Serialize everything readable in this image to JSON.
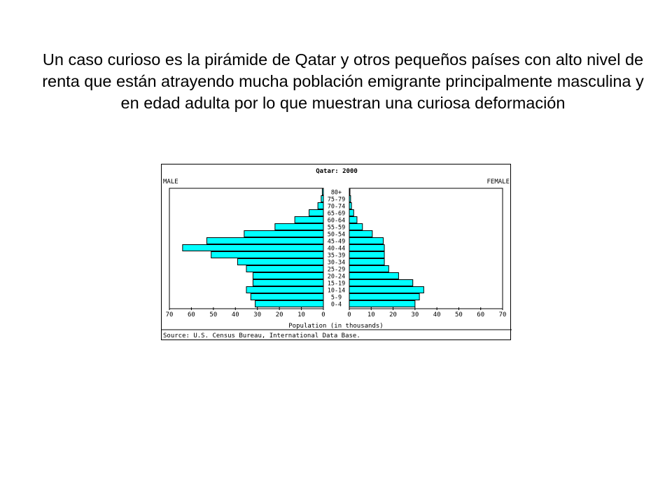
{
  "caption": "Un caso curioso es la pirámide de Qatar y otros pequeños países con alto nivel de renta que están atrayendo mucha población emigrante principalmente masculina y en edad adulta por lo que muestran una curiosa deformación",
  "chart_data": {
    "type": "bar",
    "subtype": "population-pyramid",
    "title": "Qatar: 2000",
    "left_label": "MALE",
    "right_label": "FEMALE",
    "xlabel": "Population (in thousands)",
    "source": "Source: U.S. Census Bureau, International Data Base.",
    "xlim": [
      0,
      70
    ],
    "x_ticks": [
      70,
      60,
      50,
      40,
      30,
      20,
      10,
      0
    ],
    "categories": [
      "80+",
      "75-79",
      "70-74",
      "65-69",
      "60-64",
      "55-59",
      "50-54",
      "45-49",
      "40-44",
      "35-39",
      "30-34",
      "25-29",
      "20-24",
      "15-19",
      "10-14",
      "5-9",
      "0-4"
    ],
    "series": [
      {
        "name": "MALE",
        "values": [
          0.5,
          1,
          2.5,
          6.5,
          13,
          22,
          36,
          53,
          64,
          51,
          39,
          35,
          32,
          32,
          35,
          33,
          31
        ],
        "color": "#00ffff"
      },
      {
        "name": "FEMALE",
        "values": [
          0.3,
          0.6,
          1,
          2,
          3.5,
          6,
          10.5,
          15.5,
          16,
          16,
          16,
          18,
          22.5,
          29,
          34,
          32,
          30
        ],
        "color": "#00ffff"
      }
    ],
    "grid": false
  }
}
